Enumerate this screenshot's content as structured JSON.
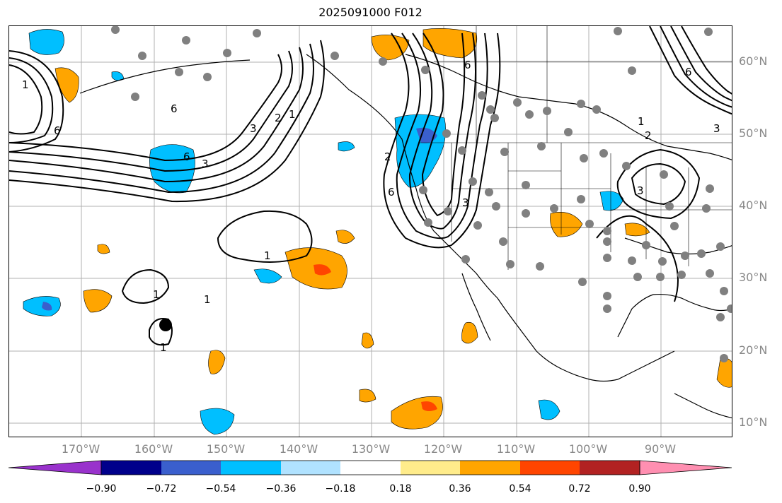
{
  "title": "2025091000 F012",
  "lat_labels": [
    "60°N",
    "50°N",
    "40°N",
    "30°N",
    "20°N",
    "10°N"
  ],
  "lon_labels": [
    "170°W",
    "160°W",
    "150°W",
    "140°W",
    "130°W",
    "120°W",
    "110°W",
    "100°W",
    "90°W"
  ],
  "colorbar": {
    "ticks": [
      "−0.90",
      "−0.72",
      "−0.54",
      "−0.36",
      "−0.18",
      "0.18",
      "0.36",
      "0.54",
      "0.72",
      "0.90"
    ],
    "colors": [
      "#9932cc",
      "#00008b",
      "#3a5fcd",
      "#00bfff",
      "#b0e2ff",
      "#ffffff",
      "#ffec8b",
      "#ffa500",
      "#ff4500",
      "#b22222",
      "#ff8fb1"
    ]
  },
  "contour_labels": [
    "1",
    "2",
    "3",
    "6"
  ],
  "colors": {
    "positive": "#ffa500",
    "strong_positive": "#ff4500",
    "negative": "#00bfff",
    "strong_negative": "#3a5fcd",
    "station": "#808080"
  }
}
